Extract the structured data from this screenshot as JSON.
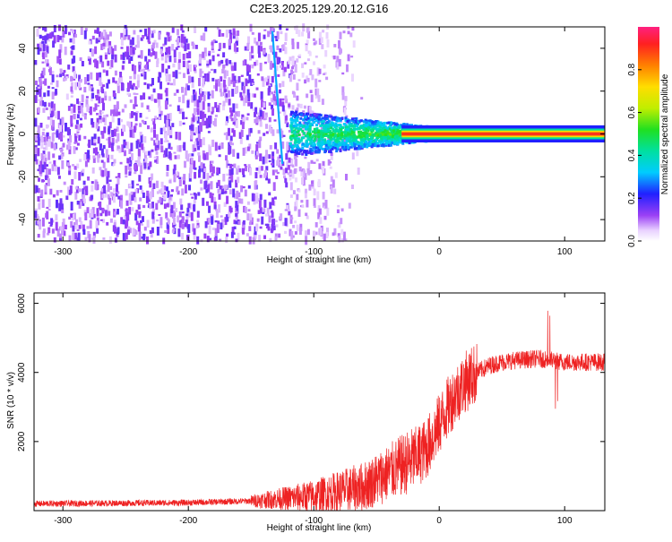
{
  "title": "C2E3.2025.129.20.12.G16",
  "chart_data": [
    {
      "type": "heatmap",
      "xlabel": "Height of straight line (km)",
      "ylabel": "Frequency (Hz)",
      "xlim": [
        -323,
        132
      ],
      "ylim": [
        -50,
        50
      ],
      "x_ticks": [
        -300,
        -200,
        -100,
        0,
        100
      ],
      "y_ticks": [
        -40,
        -20,
        0,
        20,
        40
      ],
      "colorbar": {
        "label": "Normalized spectral amplitude",
        "range": [
          0,
          1
        ],
        "ticks": [
          0.0,
          0.2,
          0.4,
          0.6,
          0.8
        ],
        "tick_labels": [
          "0.0",
          "0.2",
          "0.4",
          "0.6",
          "0.8"
        ]
      },
      "features": {
        "carrier_line_frequency_hz": 0,
        "slanted_line": {
          "x_start_km": -133,
          "x_end_km": -125,
          "y_top_hz": 48,
          "y_bottom_hz": -14
        },
        "noise_region_end_km": -120
      }
    },
    {
      "type": "line",
      "xlabel": "Height of straight line (km)",
      "ylabel": "SNR (10 * v/v)",
      "xlim": [
        -323,
        132
      ],
      "ylim": [
        0,
        6300
      ],
      "x_ticks": [
        -300,
        -200,
        -100,
        0,
        100
      ],
      "y_ticks": [
        2000,
        4000,
        6000
      ],
      "series": [
        {
          "color": "#ee2222",
          "envelope": {
            "x": [
              -323,
              -200,
              -150,
              -100,
              -60,
              -40,
              -20,
              -10,
              0,
              10,
              20,
              30,
              40,
              50,
              60,
              80,
              90,
              100,
              132
            ],
            "y": [
              200,
              230,
              280,
              420,
              700,
              1100,
              1500,
              1800,
              2500,
              3200,
              3700,
              4000,
              4200,
              4300,
              4350,
              4400,
              4350,
              4300,
              4300
            ]
          }
        }
      ]
    }
  ],
  "colors": {
    "spectrogram_low": "#8c2cf0",
    "carrier_core": "#ff2a2a",
    "snr_line": "#ee2222"
  }
}
